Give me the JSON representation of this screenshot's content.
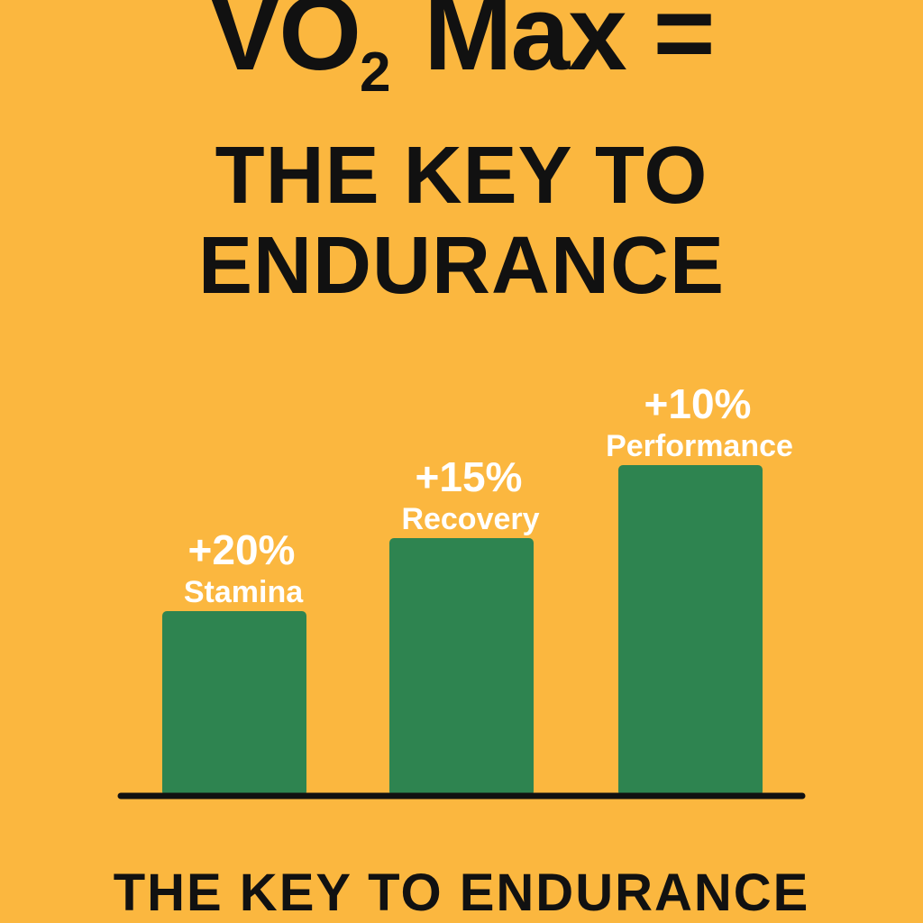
{
  "headline": {
    "prefix": "VO",
    "subscript": "2",
    "suffix": " Max =",
    "line2": "THE KEY TO",
    "line3": "ENDURANCE"
  },
  "footer": {
    "text": "THE KEY TO ENDURANCE"
  },
  "colors": {
    "background": "#FBB73F",
    "bar": "#2E8450",
    "text_dark": "#111111",
    "label_light": "#FFFFFF"
  },
  "chart_data": {
    "type": "bar",
    "title": "",
    "xlabel": "",
    "ylabel": "",
    "categories": [
      "Stamina",
      "Recovery",
      "Performance"
    ],
    "value_labels": [
      "+20%",
      "+15%",
      "+10%"
    ],
    "values": [
      20,
      15,
      10
    ],
    "grid": false,
    "legend": "none"
  }
}
